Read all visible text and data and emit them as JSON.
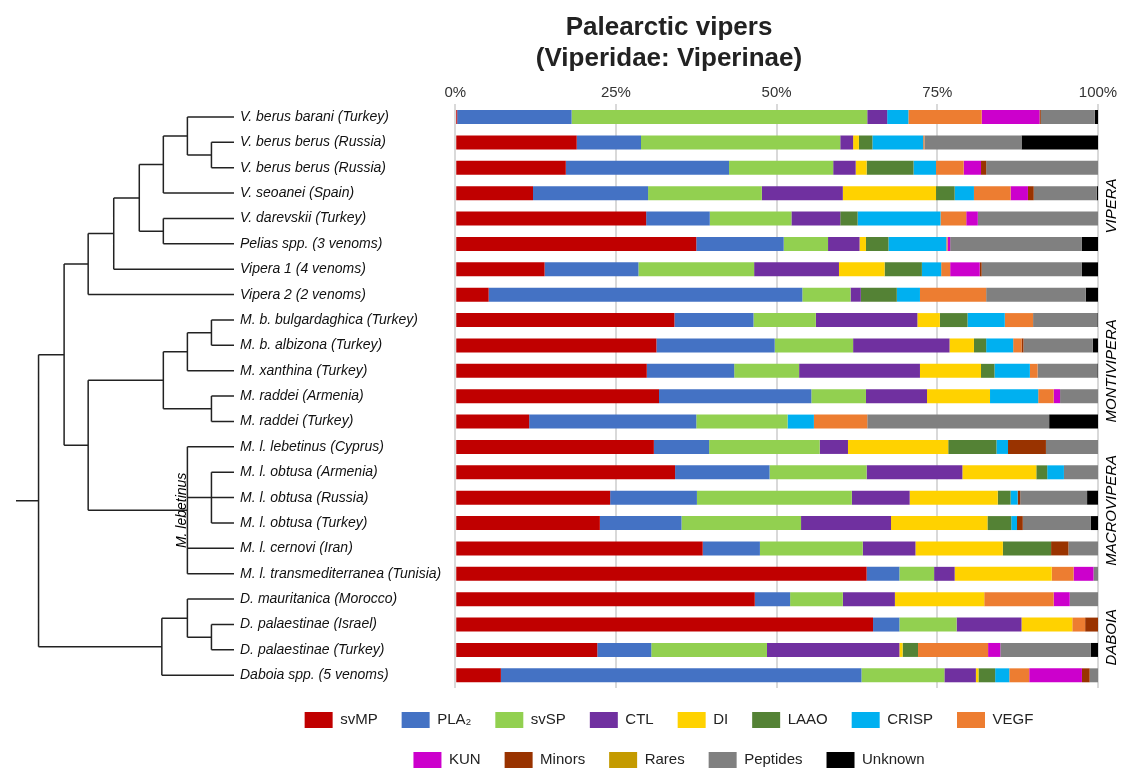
{
  "chart_data": {
    "type": "bar",
    "orientation": "horizontal",
    "stacked": true,
    "title": "Palearctic vipers",
    "subtitle": "(Viperidae: Viperinae)",
    "categories": [
      "V. berus barani (Turkey)",
      "V. berus berus (Russia)",
      "V. berus berus (Russia)",
      "V. seoanei (Spain)",
      "V. darevskii (Turkey)",
      "Pelias spp. (3 venoms)",
      "Vipera 1 (4 venoms)",
      "Vipera 2 (2 venoms)",
      "M. b. bulgardaghica (Turkey)",
      "M. b. albizona (Turkey)",
      "M. xanthina (Turkey)",
      "M. raddei (Armenia)",
      "M. raddei (Turkey)",
      "M. l. lebetinus (Cyprus)",
      "M. l. obtusa (Armenia)",
      "M. l. obtusa (Russia)",
      "M. l. obtusa (Turkey)",
      "M. l. cernovi (Iran)",
      "M. l. transmediterranea (Tunisia)",
      "D. mauritanica (Morocco)",
      "D. palaestinae (Israel)",
      "D. palaestinae (Turkey)",
      "Daboia spp. (5 venoms)"
    ],
    "series": [
      {
        "name": "svMP",
        "color": "#c00000",
        "values": [
          0.3,
          18.9,
          17.2,
          12.1,
          29.7,
          37.5,
          13.9,
          5.2,
          34.1,
          31.3,
          29.8,
          31.7,
          11.5,
          30.9,
          34.2,
          24.1,
          22.5,
          38.5,
          64.0,
          46.6,
          65.0,
          22.1,
          7.1
        ]
      },
      {
        "name": "PLA₂",
        "color": "#4472c4",
        "values": [
          17.8,
          10.0,
          25.4,
          17.9,
          9.9,
          13.6,
          14.6,
          48.8,
          12.3,
          18.4,
          13.6,
          23.7,
          26.0,
          8.6,
          14.7,
          13.5,
          12.7,
          8.9,
          5.1,
          5.5,
          4.1,
          8.4,
          56.1
        ]
      },
      {
        "name": "svSP",
        "color": "#92d050",
        "values": [
          46.0,
          31.0,
          16.2,
          17.7,
          12.7,
          6.9,
          18.0,
          7.5,
          9.7,
          12.2,
          10.1,
          8.5,
          14.2,
          17.2,
          15.1,
          24.1,
          18.6,
          16.0,
          5.4,
          8.2,
          8.9,
          18.0,
          12.9
        ]
      },
      {
        "name": "CTL",
        "color": "#7030a0",
        "values": [
          3.1,
          2.0,
          3.5,
          12.6,
          7.6,
          4.9,
          13.2,
          1.6,
          15.8,
          15.0,
          18.8,
          9.5,
          0,
          4.4,
          14.9,
          9.0,
          14.0,
          8.2,
          3.2,
          8.1,
          10.1,
          20.6,
          4.9
        ]
      },
      {
        "name": "DI",
        "color": "#ffd200",
        "values": [
          0,
          0.9,
          1.7,
          14.5,
          0,
          1.0,
          7.1,
          0,
          3.5,
          3.8,
          9.5,
          9.8,
          0,
          15.6,
          11.5,
          13.7,
          15.0,
          13.6,
          15.1,
          13.9,
          7.9,
          0.5,
          0.4
        ]
      },
      {
        "name": "LAAO",
        "color": "#548235",
        "values": [
          0,
          2.1,
          7.3,
          2.9,
          2.7,
          3.5,
          5.8,
          5.6,
          4.3,
          1.9,
          2.1,
          0,
          0,
          7.5,
          1.7,
          2.0,
          3.7,
          7.5,
          0,
          0,
          0,
          2.4,
          2.6
        ]
      },
      {
        "name": "CRISP",
        "color": "#00b0f0",
        "values": [
          3.3,
          7.9,
          3.5,
          3.0,
          12.9,
          9.0,
          3.0,
          3.6,
          5.8,
          4.2,
          5.5,
          7.5,
          4.1,
          1.8,
          2.6,
          1.1,
          0.9,
          0,
          0,
          0,
          0,
          0,
          2.2
        ]
      },
      {
        "name": "VEGF",
        "color": "#ed7d31",
        "values": [
          11.4,
          0.2,
          4.3,
          5.7,
          4.0,
          0.2,
          1.4,
          10.3,
          4.4,
          1.3,
          1.2,
          2.4,
          8.3,
          0,
          0,
          0,
          0,
          0,
          3.4,
          10.8,
          2.0,
          10.9,
          3.1
        ]
      },
      {
        "name": "KUN",
        "color": "#cc00cc",
        "values": [
          9.0,
          0,
          2.7,
          2.7,
          1.8,
          0.4,
          4.6,
          0,
          0,
          0,
          0,
          1.0,
          0,
          0,
          0,
          0,
          0,
          0,
          3.1,
          2.5,
          0,
          1.9,
          8.2
        ]
      },
      {
        "name": "Minors",
        "color": "#993300",
        "values": [
          0.2,
          0,
          0.8,
          0.9,
          0,
          0,
          0.3,
          0,
          0,
          0.3,
          0,
          0,
          0,
          5.9,
          0,
          0.4,
          0.9,
          2.7,
          0,
          0,
          2.0,
          0,
          1.2
        ]
      },
      {
        "name": "Rares",
        "color": "#c49a00",
        "values": [
          0,
          0,
          0,
          0,
          0,
          0,
          0,
          0,
          0,
          0,
          0,
          0,
          0,
          0,
          0,
          0,
          0,
          0,
          0,
          0,
          0,
          0,
          0
        ]
      },
      {
        "name": "Peptides",
        "color": "#808080",
        "values": [
          8.4,
          15.1,
          17.4,
          9.8,
          18.7,
          20.5,
          15.6,
          15.5,
          10.0,
          10.8,
          9.3,
          5.9,
          28.3,
          8.1,
          5.3,
          10.4,
          10.6,
          4.6,
          0.7,
          4.4,
          0,
          14.1,
          1.3
        ]
      },
      {
        "name": "Unknown",
        "color": "#000000",
        "values": [
          0.5,
          11.9,
          0,
          0.2,
          0,
          2.5,
          2.5,
          1.9,
          0.1,
          0.8,
          0.1,
          0,
          7.6,
          0,
          0,
          1.7,
          1.1,
          0,
          0,
          0,
          0,
          1.1,
          0
        ]
      }
    ],
    "xlim": [
      0,
      100
    ],
    "xticks": [
      {
        "value": 0,
        "label": "0%"
      },
      {
        "value": 25,
        "label": "25%"
      },
      {
        "value": 50,
        "label": "50%"
      },
      {
        "value": 75,
        "label": "75%"
      },
      {
        "value": 100,
        "label": "100%"
      }
    ],
    "grid": "x",
    "legend": "bottom",
    "annotations": [
      "VIPERA",
      "MONTIVIPERA",
      "MACROVIPERA",
      "DABOIA",
      "M. lebetinus"
    ]
  }
}
